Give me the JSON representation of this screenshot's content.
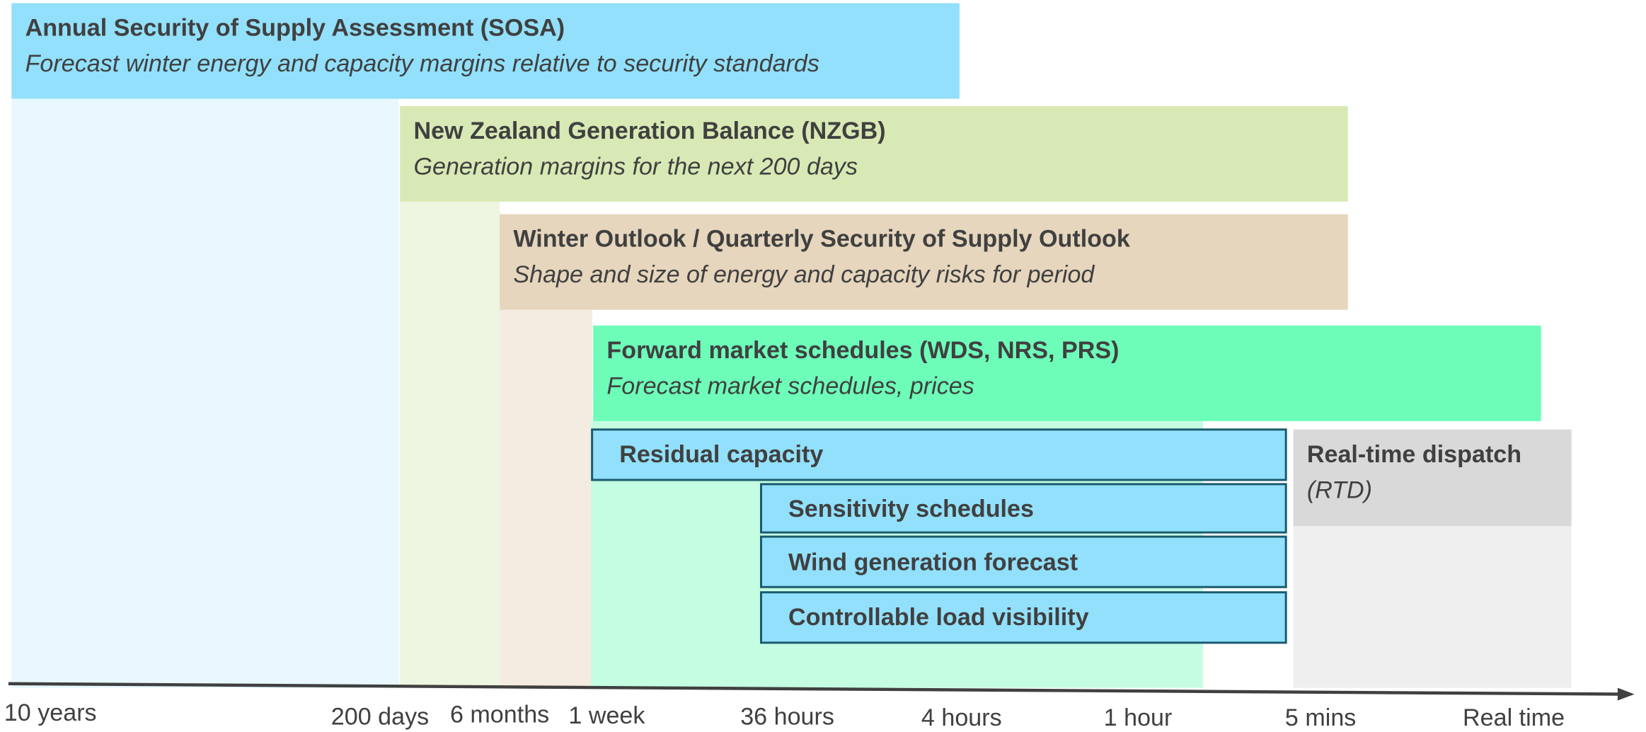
{
  "blocks": [
    {
      "title": "Annual Security of Supply Assessment (SOSA)",
      "subtitle": "Forecast winter energy and capacity margins relative to security standards"
    },
    {
      "title": "New Zealand Generation Balance (NZGB)",
      "subtitle": "Generation margins for the next 200 days"
    },
    {
      "title": "Winter Outlook / Quarterly Security of Supply Outlook",
      "subtitle": "Shape and size of energy and capacity risks for period"
    },
    {
      "title": "Forward market schedules (WDS, NRS, PRS)",
      "subtitle": "Forecast market schedules, prices"
    },
    {
      "title": "Residual capacity"
    },
    {
      "title": "Sensitivity schedules"
    },
    {
      "title": "Wind generation forecast"
    },
    {
      "title": "Controllable load visibility"
    },
    {
      "title": "Real-time dispatch",
      "subtitle": "(RTD)"
    }
  ],
  "timeline": [
    "10 years",
    "200 days",
    "6 months",
    "1 week",
    "36 hours",
    "4 hours",
    "1 hour",
    "5 mins",
    "Real time"
  ]
}
